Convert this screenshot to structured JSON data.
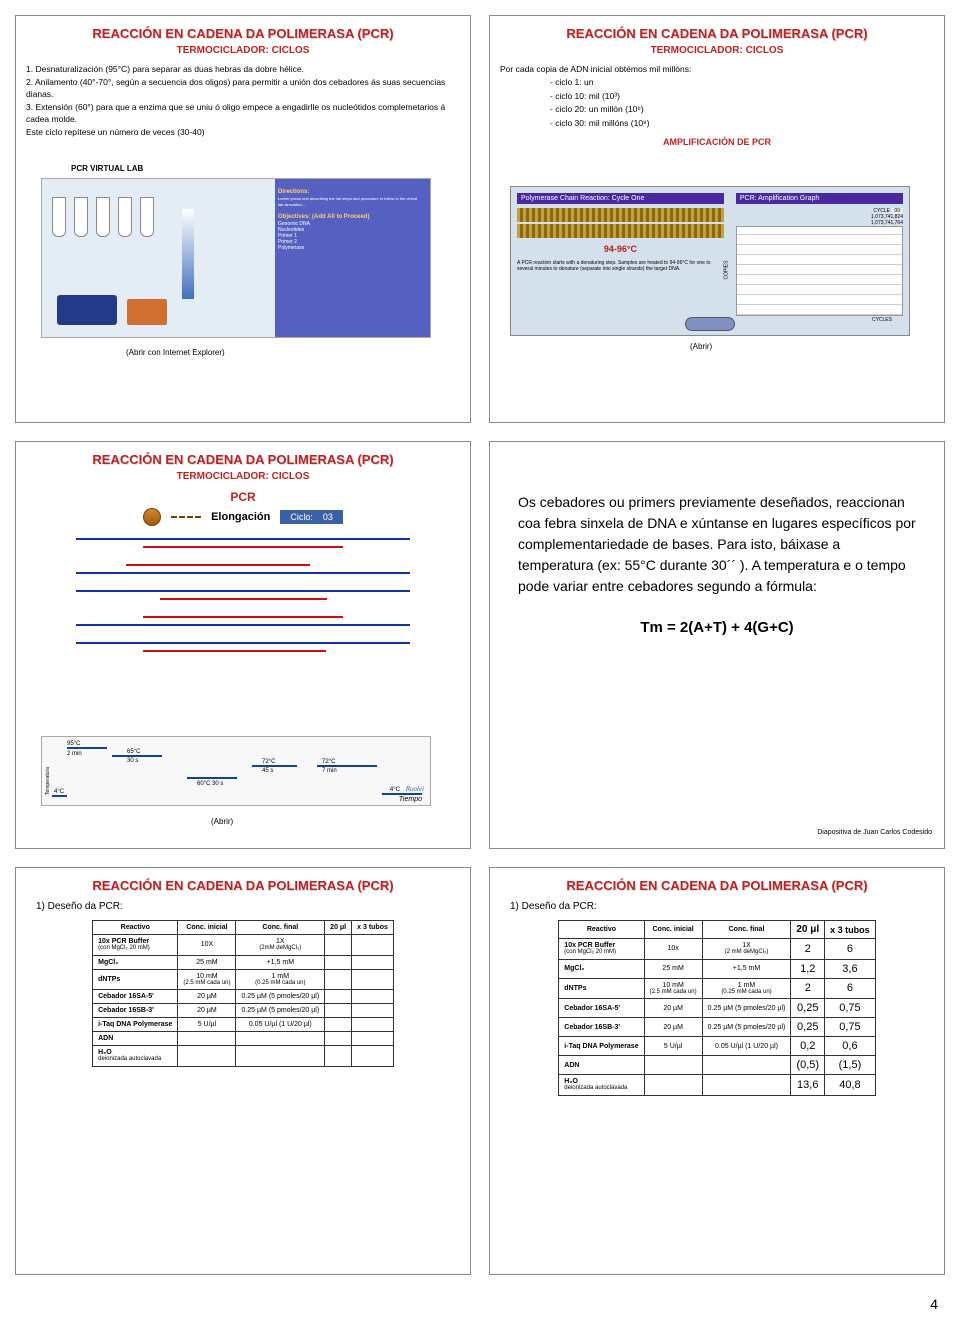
{
  "page_number": "4",
  "common": {
    "title": "REACCIÓN EN CADENA DA POLIMERASA (PCR)",
    "subtitle": "TERMOCICLADOR: CICLOS"
  },
  "slide1": {
    "line1": "1. Desnaturalización (95°C) para separar as duas hebras da dobre hélice.",
    "line2": "2. Anilamento (40°-70°, según a secuencia dos oligos) para permitir a unión dos cebadores ás suas secuencias dianas.",
    "line3": "3. Extensión (60°) para que a enzima que se uniu ó oligo empece a engadirlle os nucleótidos complemetarios á cadea molde.",
    "line4": "Este ciclo repítese un número de veces (30-40)",
    "virtlab": "PCR VIRTUAL LAB",
    "directions": "Directions:",
    "objectives": "Objectives: (Add All to Proceed)",
    "obj_items": [
      "Genomic DNA",
      "Nucleotides",
      "Primer 1",
      "Primer 2",
      "Polymerase"
    ],
    "caption": "(Abrir con Internet Explorer)"
  },
  "slide2": {
    "intro": "Por cada copia de ADN inicial obtémos mil millóns:",
    "c1": "- ciclo 1: un",
    "c10": "- ciclo 10: mil (10³)",
    "c20": "- ciclo 20: un millón (10⁶)",
    "c30": "- ciclo 30: mil millóns (10⁹)",
    "amp": "AMPLIFICACIÓN DE PCR",
    "left_hdr": "Polymerase Chain Reaction: Cycle One",
    "temp": "94-96°C",
    "left_txt": "A PCR reaction starts with a denaturing step. Samples are heated to 94-96°C for one to several minutes to denature (separate into single strands) the target DNA.",
    "right_hdr": "PCR: Amplification Graph",
    "cycle_lbl": "CYCLE",
    "cycle_val": "00",
    "n1": "1,073,741,824",
    "n2": "1,073,741,764",
    "xlabel": "CYCLES",
    "ylabel": "COPIES",
    "caption": "(Abrir)"
  },
  "slide3": {
    "pcr": "PCR",
    "elong": "Elongación",
    "cycle_lbl": "Ciclo:",
    "cycle_val": "03",
    "ylabel": "Temperatura",
    "xlabel": "Tiempo",
    "t95": "95°C",
    "t65": "65°C",
    "t72": "72°C",
    "t72b": "72°C",
    "t4": "4°C",
    "t4b": "4°C",
    "d1": "2 min",
    "d2": "30 s",
    "d3": "60°C 30 s",
    "d4": "45 s",
    "d5": "7 min",
    "caption": "(Abrir)"
  },
  "slide4": {
    "text": "Os cebadores ou primers previamente deseñados, reaccionan coa febra sinxela de DNA e xúntanse en lugares específicos por complementariedade de bases. Para isto, báixase a temperatura (ex: 55°C durante 30´´ ). A temperatura e o tempo pode variar entre cebadores segundo a fórmula:",
    "formula": "Tm = 2(A+T) + 4(G+C)",
    "credit": "Diapositiva de Juan Carlos Codesido"
  },
  "slide5": {
    "design": "1)  Deseño da PCR:",
    "cols": [
      "Reactivo",
      "Conc. inicial",
      "Conc. final",
      "20 μl",
      "x 3 tubos"
    ],
    "rows": [
      {
        "r": "10x PCR Buffer",
        "sub": "(con MgCl₂ 20 mM)",
        "ci": "10X",
        "cf": "1X",
        "cfsub": "(2mM deMgCl₂)",
        "v": "",
        "t": ""
      },
      {
        "r": "MgCl₂",
        "ci": "25 mM",
        "cf": "+1,5 mM",
        "v": "",
        "t": ""
      },
      {
        "r": "dNTPs",
        "ci": "10 mM",
        "cisub": "(2.5 mM cada un)",
        "cf": "1 mM",
        "cfsub": "(0.25 mM cada un)",
        "v": "",
        "t": ""
      },
      {
        "r": "Cebador 16SA-5'",
        "ci": "20 µM",
        "cf": "0.25 µM (5 pmoles/20 µl)",
        "v": "",
        "t": ""
      },
      {
        "r": "Cebador 16SB-3'",
        "ci": "20 µM",
        "cf": "0.25 µM (5 pmoles/20 µl)",
        "v": "",
        "t": ""
      },
      {
        "r": "i-Taq DNA Polymerase",
        "ci": "5 U/µl",
        "cf": "0.05 U/µl (1 U/20 µl)",
        "v": "",
        "t": ""
      },
      {
        "r": "ADN",
        "ci": "",
        "cf": "",
        "v": "",
        "t": ""
      },
      {
        "r": "H₂O",
        "sub": "deionizada autoclavada",
        "ci": "",
        "cf": "",
        "v": "",
        "t": ""
      }
    ]
  },
  "slide6": {
    "design": "1)  Deseño da PCR:",
    "cols": [
      "Reactivo",
      "Conc. inicial",
      "Conc. final",
      "20 μl",
      "x 3 tubos"
    ],
    "rows": [
      {
        "r": "10x PCR Buffer",
        "sub": "(con MgCl₂ 20 mM)",
        "ci": "10x",
        "cf": "1X",
        "cfsub": "(2 mM deMgCl₂)",
        "v": "2",
        "t": "6"
      },
      {
        "r": "MgCl₂",
        "ci": "25 mM",
        "cf": "+1,5 mM",
        "v": "1,2",
        "t": "3,6"
      },
      {
        "r": "dNTPs",
        "ci": "10 mM",
        "cisub": "(2.5 mM cada un)",
        "cf": "1 mM",
        "cfsub": "(0.25 mM cada un)",
        "v": "2",
        "t": "6"
      },
      {
        "r": "Cebador 16SA-5'",
        "ci": "20 µM",
        "cf": "0.25 µM (5 pmoles/20 µl)",
        "v": "0,25",
        "t": "0,75"
      },
      {
        "r": "Cebador 16SB-3'",
        "ci": "20 µM",
        "cf": "0.25 µM (5 pmoles/20 µl)",
        "v": "0,25",
        "t": "0,75"
      },
      {
        "r": "i-Taq DNA Polymerase",
        "ci": "5 U/µl",
        "cf": "0.05 U/µl (1 U/20 µl)",
        "v": "0,2",
        "t": "0,6"
      },
      {
        "r": "ADN",
        "ci": "",
        "cf": "",
        "v": "(0,5)",
        "t": "(1,5)"
      },
      {
        "r": "H₂O",
        "sub": "deionizada autoclavada",
        "ci": "",
        "cf": "",
        "v": "13,6",
        "t": "40,8"
      }
    ]
  }
}
